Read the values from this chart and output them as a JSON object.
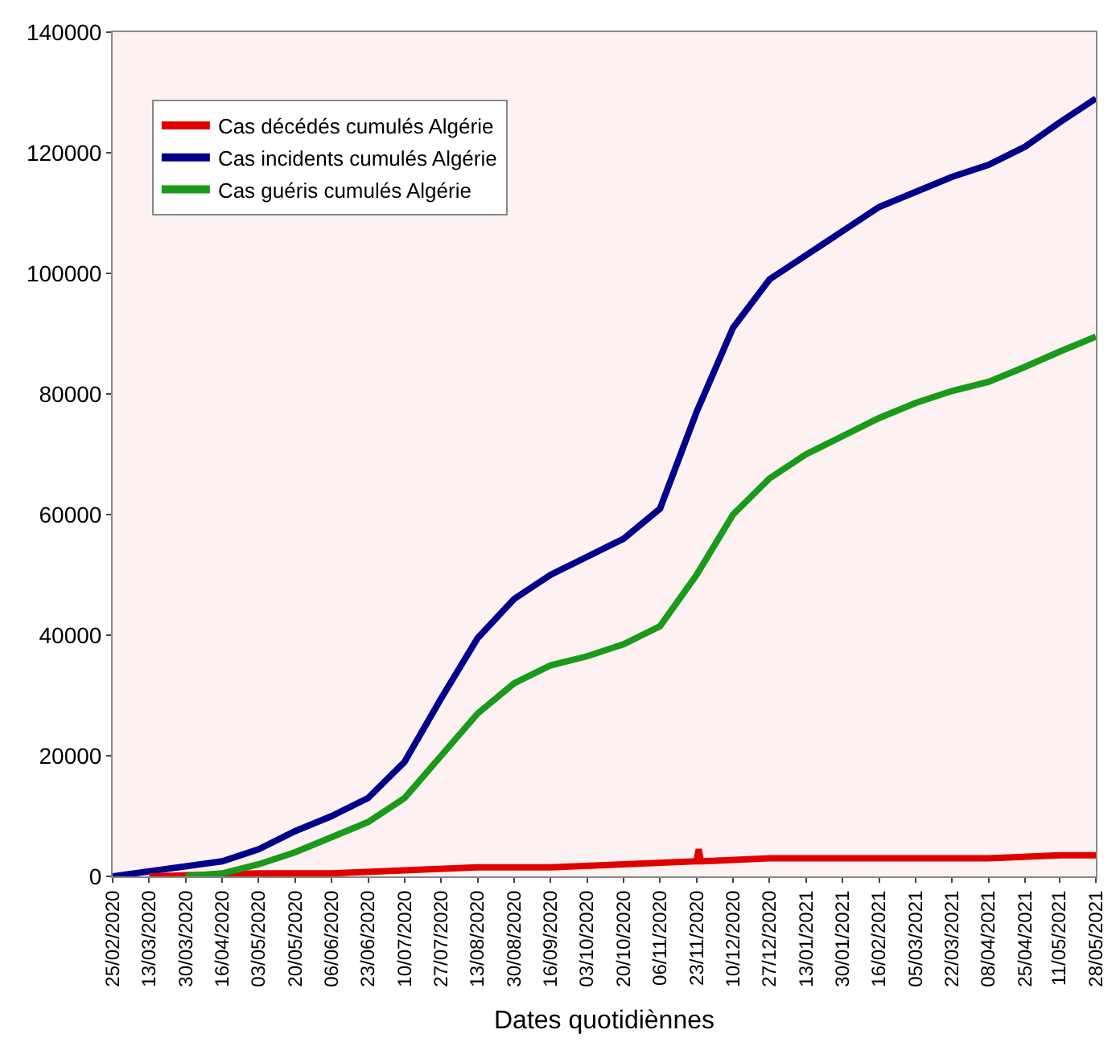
{
  "chart_data": {
    "type": "line",
    "xlabel": "Dates quotidiènnes",
    "xlim": [
      "2020-02-25",
      "2021-05-28"
    ],
    "ylim": [
      0,
      140000
    ],
    "yticks": [
      0,
      20000,
      40000,
      60000,
      80000,
      100000,
      120000,
      140000
    ],
    "xticks": [
      {
        "value": "2020-02-25",
        "label": "25/02/2020"
      },
      {
        "value": "2020-03-13",
        "label": "13/03/2020"
      },
      {
        "value": "2020-03-30",
        "label": "30/03/2020"
      },
      {
        "value": "2020-04-16",
        "label": "16/04/2020"
      },
      {
        "value": "2020-05-03",
        "label": "03/05/2020"
      },
      {
        "value": "2020-05-20",
        "label": "20/05/2020"
      },
      {
        "value": "2020-06-06",
        "label": "06/06/2020"
      },
      {
        "value": "2020-06-23",
        "label": "23/06/2020"
      },
      {
        "value": "2020-07-10",
        "label": "10/07/2020"
      },
      {
        "value": "2020-07-27",
        "label": "27/07/2020"
      },
      {
        "value": "2020-08-13",
        "label": "13/08/2020"
      },
      {
        "value": "2020-08-30",
        "label": "30/08/2020"
      },
      {
        "value": "2020-09-16",
        "label": "16/09/2020"
      },
      {
        "value": "2020-10-03",
        "label": "03/10/2020"
      },
      {
        "value": "2020-10-20",
        "label": "20/10/2020"
      },
      {
        "value": "2020-11-06",
        "label": "06/11/2020"
      },
      {
        "value": "2020-11-23",
        "label": "23/11/2020"
      },
      {
        "value": "2020-12-10",
        "label": "10/12/2020"
      },
      {
        "value": "2020-12-27",
        "label": "27/12/2020"
      },
      {
        "value": "2021-01-13",
        "label": "13/01/2021"
      },
      {
        "value": "2021-01-30",
        "label": "30/01/2021"
      },
      {
        "value": "2021-02-16",
        "label": "16/02/2021"
      },
      {
        "value": "2021-03-05",
        "label": "05/03/2021"
      },
      {
        "value": "2021-03-22",
        "label": "22/03/2021"
      },
      {
        "value": "2021-04-08",
        "label": "08/04/2021"
      },
      {
        "value": "2021-04-25",
        "label": "25/04/2021"
      },
      {
        "value": "2021-05-11",
        "label": "11/05/2021"
      },
      {
        "value": "2021-05-28",
        "label": "28/05/2021"
      }
    ],
    "grid": false,
    "legend": "top left",
    "marker": "none",
    "line_style": "solid",
    "series": [
      {
        "name": "Cas décédés cumulés Algérie",
        "color": "#e00000",
        "x": [
          "2020-03-13",
          "2020-05-03",
          "2020-06-06",
          "2020-07-10",
          "2020-08-13",
          "2020-09-16",
          "2020-10-20",
          "2020-11-23",
          "2020-11-24",
          "2020-11-25",
          "2020-11-26",
          "2020-12-27",
          "2021-01-30",
          "2021-03-05",
          "2021-04-08",
          "2021-05-11",
          "2021-05-28"
        ],
        "values": [
          0,
          500,
          500,
          1000,
          1500,
          1500,
          2000,
          2500,
          4500,
          2500,
          2500,
          3000,
          3000,
          3000,
          3000,
          3500,
          3500
        ]
      },
      {
        "name": "Cas incidents cumulés Algérie",
        "color": "#00008b",
        "x": [
          "2020-02-25",
          "2020-04-16",
          "2020-05-03",
          "2020-05-20",
          "2020-06-06",
          "2020-06-23",
          "2020-07-10",
          "2020-07-27",
          "2020-08-13",
          "2020-08-30",
          "2020-09-16",
          "2020-10-03",
          "2020-10-20",
          "2020-11-06",
          "2020-11-23",
          "2020-12-10",
          "2020-12-27",
          "2021-01-13",
          "2021-01-30",
          "2021-02-16",
          "2021-03-05",
          "2021-03-22",
          "2021-04-08",
          "2021-04-25",
          "2021-05-11",
          "2021-05-28"
        ],
        "values": [
          0,
          2500,
          4500,
          7500,
          10000,
          13000,
          19000,
          29500,
          39500,
          46000,
          50000,
          53000,
          56000,
          61000,
          77000,
          91000,
          99000,
          103000,
          107000,
          111000,
          113500,
          116000,
          118000,
          121000,
          125000,
          129000
        ]
      },
      {
        "name": "Cas guéris cumulés Algérie",
        "color": "#1a9a1a",
        "x": [
          "2020-03-30",
          "2020-04-16",
          "2020-05-03",
          "2020-05-20",
          "2020-06-06",
          "2020-06-23",
          "2020-07-10",
          "2020-07-27",
          "2020-08-13",
          "2020-08-30",
          "2020-09-16",
          "2020-10-03",
          "2020-10-20",
          "2020-11-06",
          "2020-11-23",
          "2020-12-10",
          "2020-12-27",
          "2021-01-13",
          "2021-01-30",
          "2021-02-16",
          "2021-03-05",
          "2021-03-22",
          "2021-04-08",
          "2021-04-25",
          "2021-05-11",
          "2021-05-28"
        ],
        "values": [
          0,
          500,
          2000,
          4000,
          6500,
          9000,
          13000,
          20000,
          27000,
          32000,
          35000,
          36500,
          38500,
          41500,
          50000,
          60000,
          66000,
          70000,
          73000,
          76000,
          78500,
          80500,
          82000,
          84500,
          87000,
          89500
        ]
      }
    ]
  }
}
